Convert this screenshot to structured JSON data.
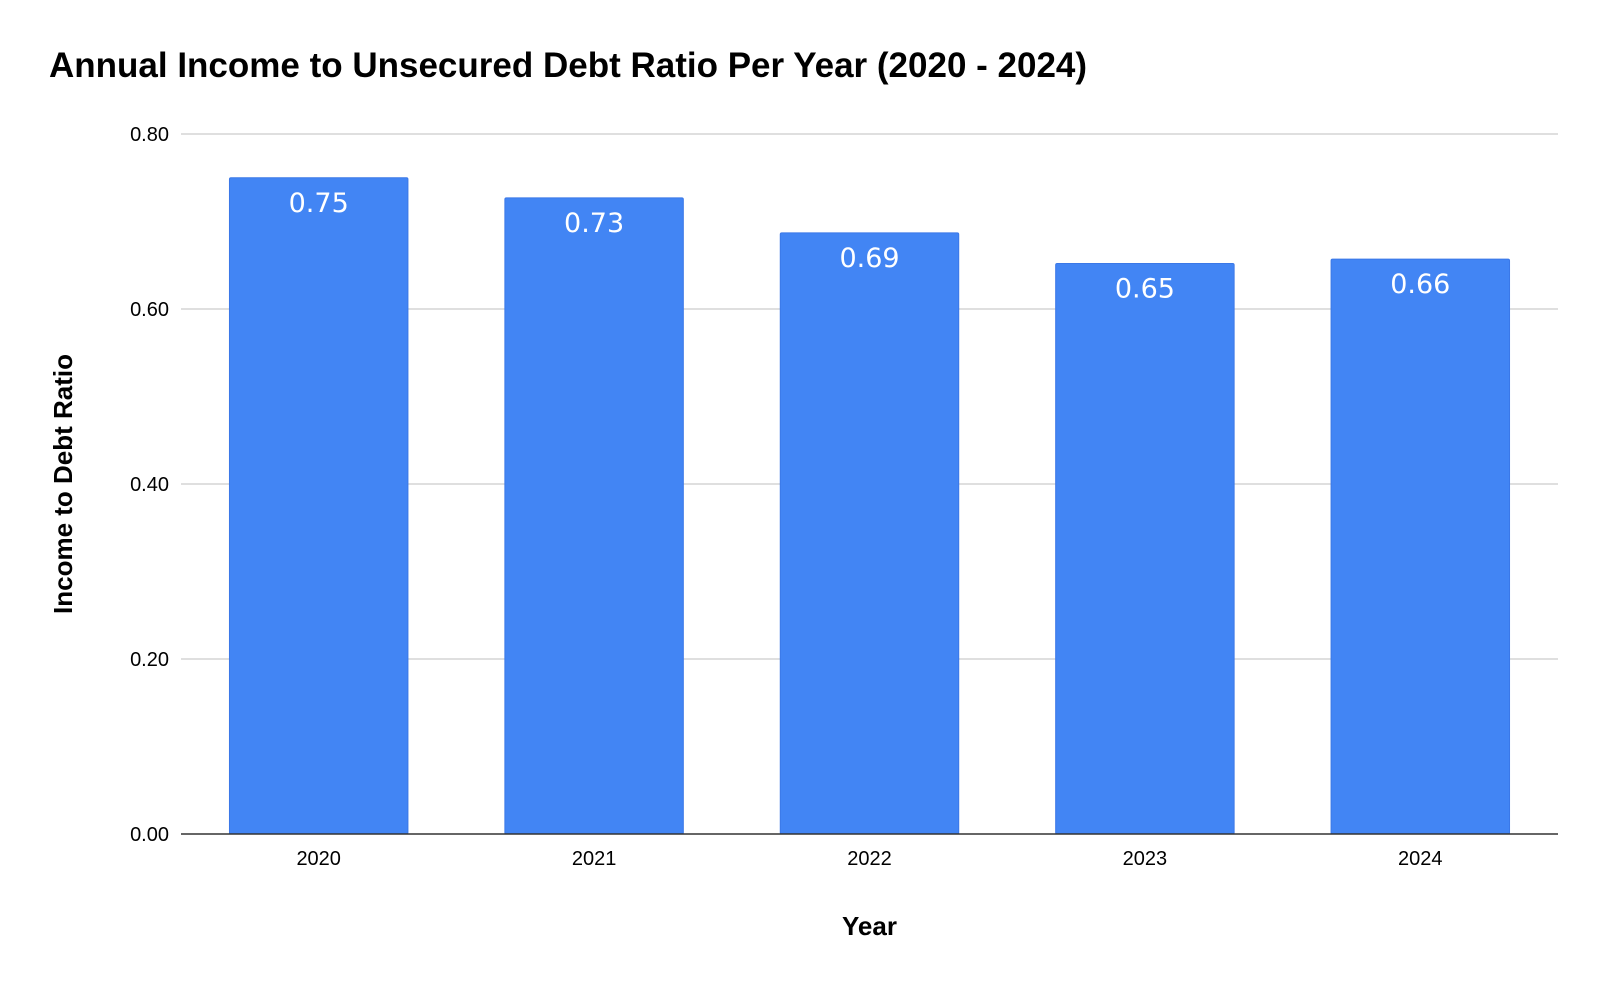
{
  "chart_data": {
    "type": "bar",
    "title": "Annual Income to Unsecured Debt Ratio Per Year (2020 - 2024)",
    "xlabel": "Year",
    "ylabel": "Income to Debt Ratio",
    "categories": [
      "2020",
      "2021",
      "2022",
      "2023",
      "2024"
    ],
    "values": [
      0.75,
      0.727,
      0.687,
      0.652,
      0.657
    ],
    "data_labels": [
      "0.75",
      "0.73",
      "0.69",
      "0.65",
      "0.66"
    ],
    "ylim": [
      0,
      0.8
    ],
    "yticks": [
      0,
      0.2,
      0.4,
      0.6,
      0.8
    ],
    "ytick_labels": [
      "0.00",
      "0.20",
      "0.40",
      "0.60",
      "0.80"
    ],
    "grid": true,
    "legend": "none",
    "colors": {
      "bar": "#4285f4",
      "bar_edge": "#3b78e7",
      "grid": "#cccccc",
      "axis": "#333333",
      "data_label": "#ffffff"
    }
  }
}
